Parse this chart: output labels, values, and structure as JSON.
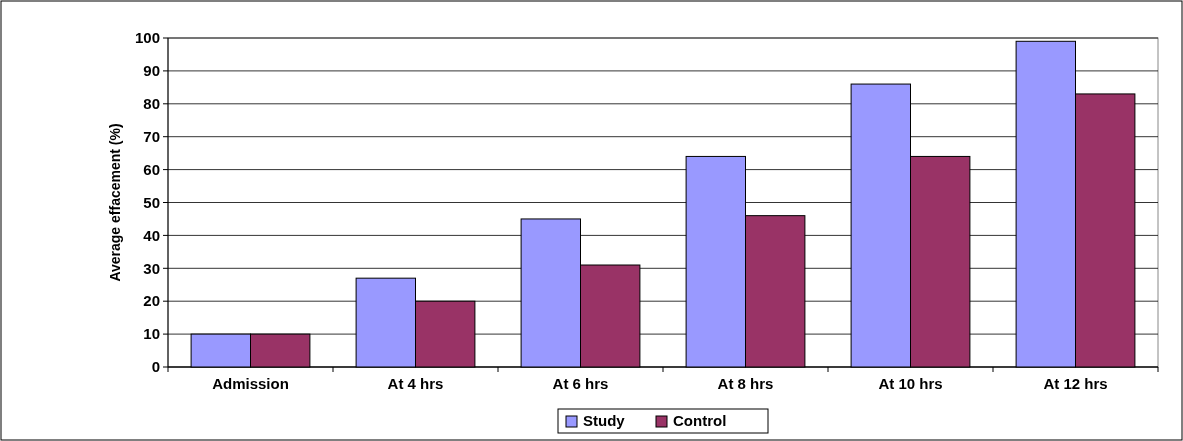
{
  "chart_data": {
    "type": "bar",
    "ylabel": "Average effacement (%)",
    "categories": [
      "Admission",
      "At 4 hrs",
      "At 6 hrs",
      "At 8 hrs",
      "At 10 hrs",
      "At 12 hrs"
    ],
    "series": [
      {
        "name": "Study",
        "color": "#9999ff",
        "values": [
          10,
          27,
          45,
          64,
          86,
          99
        ]
      },
      {
        "name": "Control",
        "color": "#993366",
        "values": [
          10,
          20,
          31,
          46,
          64,
          83
        ]
      }
    ],
    "ylim": [
      0,
      100
    ],
    "yticks": [
      0,
      10,
      20,
      30,
      40,
      50,
      60,
      70,
      80,
      90,
      100
    ],
    "grid": "y",
    "legend": "bottom"
  }
}
